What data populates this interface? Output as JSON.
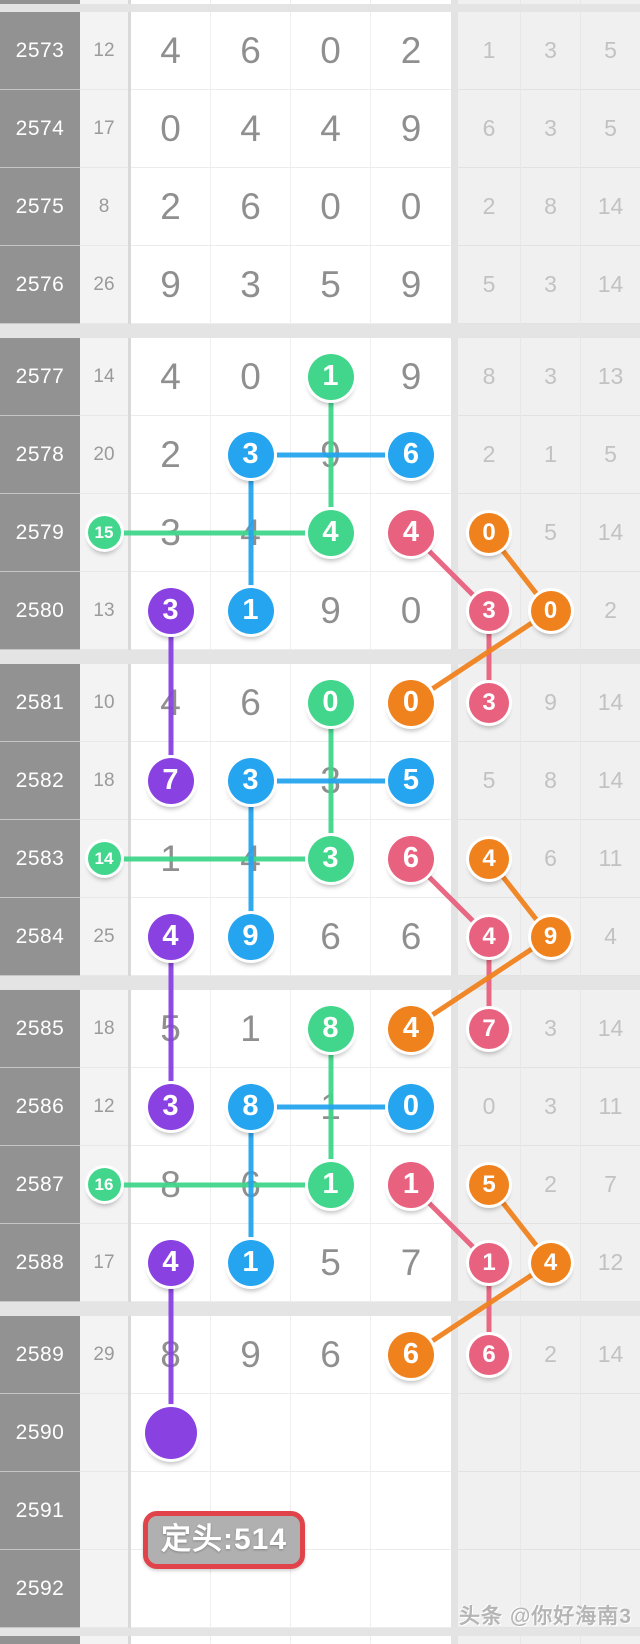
{
  "palette": {
    "green": "#41d68c",
    "blue": "#25a5ef",
    "pink": "#e8617f",
    "orange": "#f0821e",
    "violet": "#8a41e2"
  },
  "stamp": {
    "label": "定头:514",
    "border_color": "#e0444a",
    "bg_color": "#b0b0b0"
  },
  "watermark": "头条 @你好海南3",
  "table": {
    "rows": [
      {
        "period": "2573",
        "sum": "12",
        "sum_c": null,
        "main": [
          [
            "4",
            null
          ],
          [
            "6",
            null
          ],
          [
            "0",
            null
          ],
          [
            "2",
            null
          ]
        ],
        "right": [
          [
            "1",
            null
          ],
          [
            "3",
            null
          ],
          [
            "5",
            null
          ]
        ]
      },
      {
        "period": "2574",
        "sum": "17",
        "sum_c": null,
        "main": [
          [
            "0",
            null
          ],
          [
            "4",
            null
          ],
          [
            "4",
            null
          ],
          [
            "9",
            null
          ]
        ],
        "right": [
          [
            "6",
            null
          ],
          [
            "3",
            null
          ],
          [
            "5",
            null
          ]
        ]
      },
      {
        "period": "2575",
        "sum": "8",
        "sum_c": null,
        "main": [
          [
            "2",
            null
          ],
          [
            "6",
            null
          ],
          [
            "0",
            null
          ],
          [
            "0",
            null
          ]
        ],
        "right": [
          [
            "2",
            null
          ],
          [
            "8",
            null
          ],
          [
            "14",
            null
          ]
        ]
      },
      {
        "period": "2576",
        "sum": "26",
        "sum_c": null,
        "main": [
          [
            "9",
            null
          ],
          [
            "3",
            null
          ],
          [
            "5",
            null
          ],
          [
            "9",
            null
          ]
        ],
        "right": [
          [
            "5",
            null
          ],
          [
            "3",
            null
          ],
          [
            "14",
            null
          ]
        ]
      },
      {
        "period": "2577",
        "sum": "14",
        "sum_c": null,
        "main": [
          [
            "4",
            null
          ],
          [
            "0",
            null
          ],
          [
            "1",
            "green"
          ],
          [
            "9",
            null
          ]
        ],
        "right": [
          [
            "8",
            null
          ],
          [
            "3",
            null
          ],
          [
            "13",
            null
          ]
        ]
      },
      {
        "period": "2578",
        "sum": "20",
        "sum_c": null,
        "main": [
          [
            "2",
            null
          ],
          [
            "3",
            "blue"
          ],
          [
            "9",
            null
          ],
          [
            "6",
            "blue"
          ]
        ],
        "right": [
          [
            "2",
            null
          ],
          [
            "1",
            null
          ],
          [
            "5",
            null
          ]
        ]
      },
      {
        "period": "2579",
        "sum": "15",
        "sum_c": "green",
        "main": [
          [
            "3",
            null
          ],
          [
            "4",
            null
          ],
          [
            "4",
            "green"
          ],
          [
            "4",
            "pink"
          ]
        ],
        "right": [
          [
            "0",
            "orange"
          ],
          [
            "5",
            null
          ],
          [
            "14",
            null
          ]
        ]
      },
      {
        "period": "2580",
        "sum": "13",
        "sum_c": null,
        "main": [
          [
            "3",
            "violet"
          ],
          [
            "1",
            "blue"
          ],
          [
            "9",
            null
          ],
          [
            "0",
            null
          ]
        ],
        "right": [
          [
            "3",
            "pink"
          ],
          [
            "0",
            "orange"
          ],
          [
            "2",
            null
          ]
        ]
      },
      {
        "period": "2581",
        "sum": "10",
        "sum_c": null,
        "main": [
          [
            "4",
            null
          ],
          [
            "6",
            null
          ],
          [
            "0",
            "green"
          ],
          [
            "0",
            "orange"
          ]
        ],
        "right": [
          [
            "3",
            "pink"
          ],
          [
            "9",
            null
          ],
          [
            "14",
            null
          ]
        ]
      },
      {
        "period": "2582",
        "sum": "18",
        "sum_c": null,
        "main": [
          [
            "7",
            "violet"
          ],
          [
            "3",
            "blue"
          ],
          [
            "3",
            null
          ],
          [
            "5",
            "blue"
          ]
        ],
        "right": [
          [
            "5",
            null
          ],
          [
            "8",
            null
          ],
          [
            "14",
            null
          ]
        ]
      },
      {
        "period": "2583",
        "sum": "14",
        "sum_c": "green",
        "main": [
          [
            "1",
            null
          ],
          [
            "4",
            null
          ],
          [
            "3",
            "green"
          ],
          [
            "6",
            "pink"
          ]
        ],
        "right": [
          [
            "4",
            "orange"
          ],
          [
            "6",
            null
          ],
          [
            "11",
            null
          ]
        ]
      },
      {
        "period": "2584",
        "sum": "25",
        "sum_c": null,
        "main": [
          [
            "4",
            "violet"
          ],
          [
            "9",
            "blue"
          ],
          [
            "6",
            null
          ],
          [
            "6",
            null
          ]
        ],
        "right": [
          [
            "4",
            "pink"
          ],
          [
            "9",
            "orange"
          ],
          [
            "4",
            null
          ]
        ]
      },
      {
        "period": "2585",
        "sum": "18",
        "sum_c": null,
        "main": [
          [
            "5",
            null
          ],
          [
            "1",
            null
          ],
          [
            "8",
            "green"
          ],
          [
            "4",
            "orange"
          ]
        ],
        "right": [
          [
            "7",
            "pink"
          ],
          [
            "3",
            null
          ],
          [
            "14",
            null
          ]
        ]
      },
      {
        "period": "2586",
        "sum": "12",
        "sum_c": null,
        "main": [
          [
            "3",
            "violet"
          ],
          [
            "8",
            "blue"
          ],
          [
            "1",
            null
          ],
          [
            "0",
            "blue"
          ]
        ],
        "right": [
          [
            "0",
            null
          ],
          [
            "3",
            null
          ],
          [
            "11",
            null
          ]
        ]
      },
      {
        "period": "2587",
        "sum": "16",
        "sum_c": "green",
        "main": [
          [
            "8",
            null
          ],
          [
            "6",
            null
          ],
          [
            "1",
            "green"
          ],
          [
            "1",
            "pink"
          ]
        ],
        "right": [
          [
            "5",
            "orange"
          ],
          [
            "2",
            null
          ],
          [
            "7",
            null
          ]
        ]
      },
      {
        "period": "2588",
        "sum": "17",
        "sum_c": null,
        "main": [
          [
            "4",
            "violet"
          ],
          [
            "1",
            "blue"
          ],
          [
            "5",
            null
          ],
          [
            "7",
            null
          ]
        ],
        "right": [
          [
            "1",
            "pink"
          ],
          [
            "4",
            "orange"
          ],
          [
            "12",
            null
          ]
        ]
      },
      {
        "period": "2589",
        "sum": "29",
        "sum_c": null,
        "main": [
          [
            "8",
            null
          ],
          [
            "9",
            null
          ],
          [
            "6",
            null
          ],
          [
            "6",
            "orange"
          ]
        ],
        "right": [
          [
            "6",
            "pink"
          ],
          [
            "2",
            null
          ],
          [
            "14",
            null
          ]
        ]
      },
      {
        "period": "2590",
        "sum": "",
        "sum_c": null,
        "main": [
          [
            "",
            "violet"
          ],
          [
            "",
            null
          ],
          [
            "",
            null
          ],
          [
            "",
            null
          ]
        ],
        "right": [
          [
            "",
            null
          ],
          [
            "",
            null
          ],
          [
            "",
            null
          ]
        ]
      },
      {
        "period": "2591",
        "sum": "",
        "sum_c": null,
        "main": [
          [
            "",
            null
          ],
          [
            "",
            null
          ],
          [
            "",
            null
          ],
          [
            "",
            null
          ]
        ],
        "right": [
          [
            "",
            null
          ],
          [
            "",
            null
          ],
          [
            "",
            null
          ]
        ]
      },
      {
        "period": "2592",
        "sum": "",
        "sum_c": null,
        "main": [
          [
            "",
            null
          ],
          [
            "",
            null
          ],
          [
            "",
            null
          ],
          [
            "",
            null
          ]
        ],
        "right": [
          [
            "",
            null
          ],
          [
            "",
            null
          ],
          [
            "",
            null
          ]
        ]
      }
    ]
  },
  "connections": [
    {
      "c": "green",
      "a": [
        "2577",
        "m2"
      ],
      "b": [
        "2579",
        "m2"
      ]
    },
    {
      "c": "green",
      "a": [
        "2579",
        "sum"
      ],
      "b": [
        "2579",
        "m2"
      ]
    },
    {
      "c": "green",
      "a": [
        "2581",
        "m2"
      ],
      "b": [
        "2583",
        "m2"
      ]
    },
    {
      "c": "green",
      "a": [
        "2583",
        "sum"
      ],
      "b": [
        "2583",
        "m2"
      ]
    },
    {
      "c": "green",
      "a": [
        "2585",
        "m2"
      ],
      "b": [
        "2587",
        "m2"
      ]
    },
    {
      "c": "green",
      "a": [
        "2587",
        "sum"
      ],
      "b": [
        "2587",
        "m2"
      ]
    },
    {
      "c": "blue",
      "a": [
        "2578",
        "m1"
      ],
      "b": [
        "2578",
        "m3"
      ]
    },
    {
      "c": "blue",
      "a": [
        "2578",
        "m1"
      ],
      "b": [
        "2580",
        "m1"
      ]
    },
    {
      "c": "blue",
      "a": [
        "2582",
        "m1"
      ],
      "b": [
        "2582",
        "m3"
      ]
    },
    {
      "c": "blue",
      "a": [
        "2582",
        "m1"
      ],
      "b": [
        "2584",
        "m1"
      ]
    },
    {
      "c": "blue",
      "a": [
        "2586",
        "m1"
      ],
      "b": [
        "2586",
        "m3"
      ]
    },
    {
      "c": "blue",
      "a": [
        "2586",
        "m1"
      ],
      "b": [
        "2588",
        "m1"
      ]
    },
    {
      "c": "violet",
      "a": [
        "2580",
        "m0"
      ],
      "b": [
        "2582",
        "m0"
      ]
    },
    {
      "c": "violet",
      "a": [
        "2584",
        "m0"
      ],
      "b": [
        "2586",
        "m0"
      ]
    },
    {
      "c": "violet",
      "a": [
        "2588",
        "m0"
      ],
      "b": [
        "2590",
        "m0"
      ]
    },
    {
      "c": "pink",
      "a": [
        "2579",
        "m3"
      ],
      "b": [
        "2580",
        "r0"
      ]
    },
    {
      "c": "pink",
      "a": [
        "2580",
        "r0"
      ],
      "b": [
        "2581",
        "r0"
      ]
    },
    {
      "c": "pink",
      "a": [
        "2583",
        "m3"
      ],
      "b": [
        "2584",
        "r0"
      ]
    },
    {
      "c": "pink",
      "a": [
        "2584",
        "r0"
      ],
      "b": [
        "2585",
        "r0"
      ]
    },
    {
      "c": "pink",
      "a": [
        "2587",
        "m3"
      ],
      "b": [
        "2588",
        "r0"
      ]
    },
    {
      "c": "pink",
      "a": [
        "2588",
        "r0"
      ],
      "b": [
        "2589",
        "r0"
      ]
    },
    {
      "c": "orange",
      "a": [
        "2579",
        "r0"
      ],
      "b": [
        "2580",
        "r1"
      ]
    },
    {
      "c": "orange",
      "a": [
        "2580",
        "r1"
      ],
      "b": [
        "2581",
        "m3"
      ]
    },
    {
      "c": "orange",
      "a": [
        "2583",
        "r0"
      ],
      "b": [
        "2584",
        "r1"
      ]
    },
    {
      "c": "orange",
      "a": [
        "2584",
        "r1"
      ],
      "b": [
        "2585",
        "m3"
      ]
    },
    {
      "c": "orange",
      "a": [
        "2587",
        "r0"
      ],
      "b": [
        "2588",
        "r1"
      ]
    },
    {
      "c": "orange",
      "a": [
        "2588",
        "r1"
      ],
      "b": [
        "2589",
        "m3"
      ]
    }
  ]
}
